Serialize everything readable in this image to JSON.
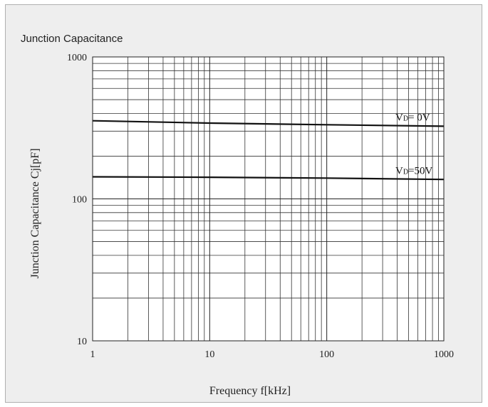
{
  "chart_data": {
    "type": "line",
    "title": "Junction Capacitance",
    "xlabel": "Frequency f[kHz]",
    "ylabel": "Junction Capacitance Cj[pF]",
    "x_scale": "log",
    "y_scale": "log",
    "xlim": [
      1,
      1000
    ],
    "ylim": [
      10,
      1000
    ],
    "x_ticks": [
      {
        "value": 1,
        "label": "1"
      },
      {
        "value": 10,
        "label": "10"
      },
      {
        "value": 100,
        "label": "100"
      },
      {
        "value": 1000,
        "label": "1000"
      }
    ],
    "y_ticks": [
      {
        "value": 10,
        "label": "10"
      },
      {
        "value": 100,
        "label": "100"
      },
      {
        "value": 1000,
        "label": "1000"
      }
    ],
    "grid": true,
    "series": [
      {
        "name": "VD= 0V",
        "label_main": "V",
        "label_sub": "D",
        "label_rest": "= 0V",
        "x": [
          1,
          10,
          100,
          1000
        ],
        "y": [
          355,
          342,
          333,
          325
        ]
      },
      {
        "name": "VD=50V",
        "label_main": "V",
        "label_sub": "D",
        "label_rest": "=50V",
        "x": [
          1,
          10,
          100,
          1000
        ],
        "y": [
          143,
          142,
          140,
          137
        ]
      }
    ],
    "colors": {
      "line": "#111111",
      "grid": "#333333",
      "panel": "#eeeeee",
      "plot": "#ffffff"
    }
  }
}
